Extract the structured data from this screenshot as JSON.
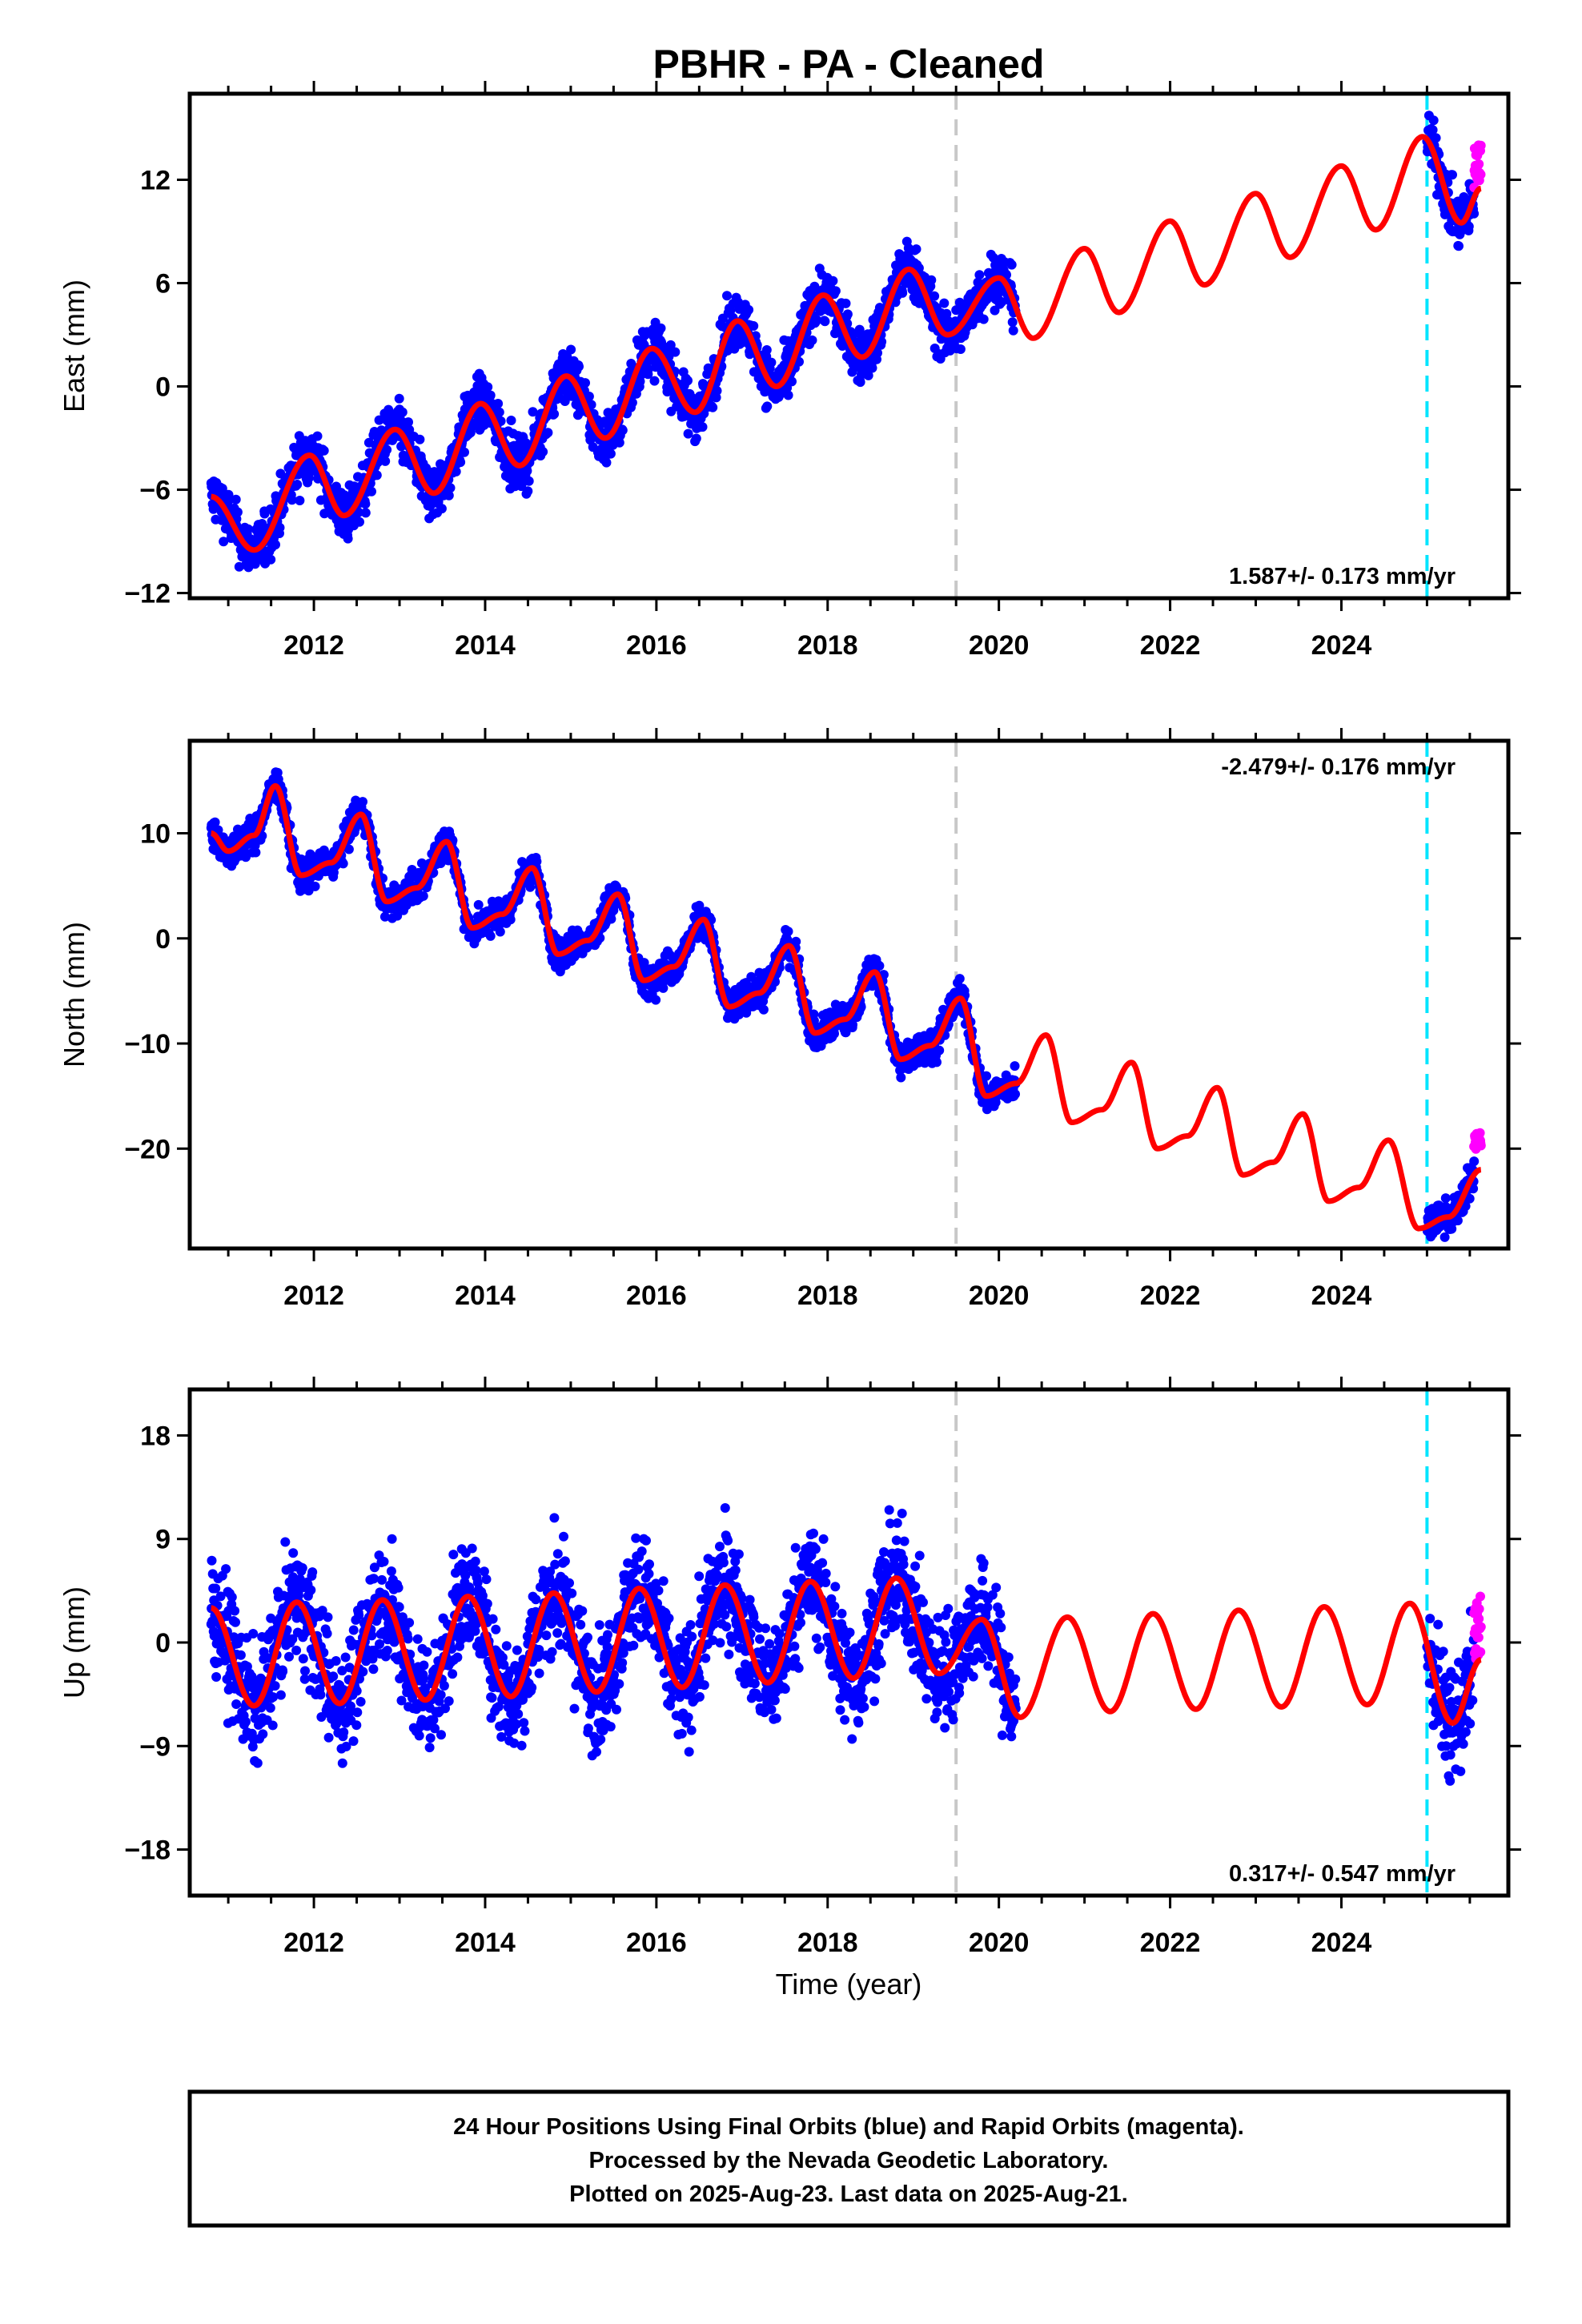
{
  "title": "PBHR  - PA - Cleaned",
  "x_axis_label": "Time (year)",
  "caption": [
    "24 Hour Positions Using Final Orbits (blue) and Rapid Orbits (magenta).",
    "Processed by the Nevada Geodetic Laboratory.",
    "Plotted on 2025-Aug-23. Last data on 2025-Aug-21."
  ],
  "colors": {
    "final_orbits": "#0000ff",
    "rapid_orbits": "#ff00ff",
    "model_fit": "#ff0000",
    "gray_line": "#c8c8c8",
    "cyan_line": "#00e5ff"
  },
  "chart_data": [
    {
      "type": "scatter",
      "component": "East",
      "ylabel": "East (mm)",
      "xlim": [
        2010.55,
        2025.95
      ],
      "ylim": [
        -12.3,
        17.0
      ],
      "xticks": [
        2012,
        2014,
        2016,
        2018,
        2020,
        2022,
        2024
      ],
      "yticks": [
        -12,
        -6,
        0,
        6,
        12
      ],
      "rate_label": "1.587+/- 0.173 mm/yr",
      "rate_position": "bottom-right",
      "gray_dashed_line_year": 2019.5,
      "cyan_dashed_line_year": 2025.0,
      "series": [
        {
          "role": "Final Orbits (blue)",
          "color": "#0000ff",
          "x_range": [
            2010.8,
            2020.2
          ]
        },
        {
          "role": "Final Orbits (blue)",
          "color": "#0000ff",
          "x_range": [
            2025.0,
            2025.55
          ]
        },
        {
          "role": "Rapid Orbits (magenta)",
          "color": "#ff00ff",
          "x_range": [
            2025.55,
            2025.63
          ]
        }
      ],
      "model": {
        "color": "#ff0000",
        "x_range": [
          2010.8,
          2025.63
        ],
        "start_value": -6.4,
        "peak_2025": 14.5
      },
      "fit_points": [
        [
          2010.8,
          -6.4
        ],
        [
          2011.3,
          -9.5
        ],
        [
          2011.95,
          -4.0
        ],
        [
          2012.35,
          -7.5
        ],
        [
          2012.95,
          -2.5
        ],
        [
          2013.4,
          -6.2
        ],
        [
          2013.95,
          -1.0
        ],
        [
          2014.4,
          -4.6
        ],
        [
          2014.95,
          0.6
        ],
        [
          2015.4,
          -3.0
        ],
        [
          2015.95,
          2.2
        ],
        [
          2016.45,
          -1.5
        ],
        [
          2016.95,
          3.8
        ],
        [
          2017.4,
          0.0
        ],
        [
          2017.95,
          5.3
        ],
        [
          2018.4,
          1.7
        ],
        [
          2018.95,
          6.8
        ],
        [
          2019.4,
          3.0
        ],
        [
          2020.0,
          6.3
        ],
        [
          2020.4,
          2.8
        ],
        [
          2021.0,
          8.0
        ],
        [
          2021.4,
          4.3
        ],
        [
          2022.0,
          9.6
        ],
        [
          2022.4,
          5.9
        ],
        [
          2023.0,
          11.2
        ],
        [
          2023.4,
          7.5
        ],
        [
          2024.0,
          12.8
        ],
        [
          2024.4,
          9.1
        ],
        [
          2024.95,
          14.5
        ],
        [
          2025.4,
          9.5
        ],
        [
          2025.63,
          11.5
        ]
      ]
    },
    {
      "type": "scatter",
      "component": "North",
      "ylabel": "North (mm)",
      "xlim": [
        2010.55,
        2025.95
      ],
      "ylim": [
        -29.5,
        18.8
      ],
      "xticks": [
        2012,
        2014,
        2016,
        2018,
        2020,
        2022,
        2024
      ],
      "yticks": [
        -20,
        -10,
        0,
        10
      ],
      "rate_label": "-2.479+/- 0.176 mm/yr",
      "rate_position": "top-right",
      "gray_dashed_line_year": 2019.5,
      "cyan_dashed_line_year": 2025.0,
      "series": [
        {
          "role": "Final Orbits (blue)",
          "color": "#0000ff",
          "x_range": [
            2010.8,
            2020.2
          ]
        },
        {
          "role": "Final Orbits (blue)",
          "color": "#0000ff",
          "x_range": [
            2025.0,
            2025.55
          ]
        },
        {
          "role": "Rapid Orbits (magenta)",
          "color": "#ff00ff",
          "x_range": [
            2025.55,
            2025.63
          ]
        }
      ],
      "model": {
        "color": "#ff0000",
        "x_range": [
          2010.8,
          2025.63
        ],
        "start_value": 10.0,
        "trough_2025": -27.6
      },
      "fit_points": [
        [
          2010.8,
          10.0
        ],
        [
          2011.0,
          8.3
        ],
        [
          2011.3,
          9.8
        ],
        [
          2011.55,
          14.5
        ],
        [
          2011.85,
          6.0
        ],
        [
          2012.2,
          7.2
        ],
        [
          2012.55,
          11.8
        ],
        [
          2012.85,
          3.5
        ],
        [
          2013.2,
          4.8
        ],
        [
          2013.55,
          9.2
        ],
        [
          2013.85,
          1.0
        ],
        [
          2014.2,
          2.3
        ],
        [
          2014.55,
          6.7
        ],
        [
          2014.85,
          -1.5
        ],
        [
          2015.2,
          -0.2
        ],
        [
          2015.55,
          4.2
        ],
        [
          2015.85,
          -4.0
        ],
        [
          2016.2,
          -2.7
        ],
        [
          2016.55,
          1.8
        ],
        [
          2016.85,
          -6.5
        ],
        [
          2017.2,
          -5.2
        ],
        [
          2017.55,
          -0.7
        ],
        [
          2017.85,
          -9.0
        ],
        [
          2018.2,
          -7.7
        ],
        [
          2018.55,
          -3.2
        ],
        [
          2018.85,
          -11.5
        ],
        [
          2019.2,
          -10.2
        ],
        [
          2019.55,
          -5.7
        ],
        [
          2019.85,
          -15.0
        ],
        [
          2020.2,
          -13.8
        ],
        [
          2020.55,
          -9.2
        ],
        [
          2020.85,
          -17.5
        ],
        [
          2021.2,
          -16.3
        ],
        [
          2021.55,
          -11.8
        ],
        [
          2021.85,
          -20.0
        ],
        [
          2022.2,
          -18.8
        ],
        [
          2022.55,
          -14.2
        ],
        [
          2022.85,
          -22.5
        ],
        [
          2023.2,
          -21.3
        ],
        [
          2023.55,
          -16.7
        ],
        [
          2023.85,
          -25.0
        ],
        [
          2024.2,
          -23.7
        ],
        [
          2024.55,
          -19.2
        ],
        [
          2024.9,
          -27.6
        ],
        [
          2025.25,
          -26.5
        ],
        [
          2025.63,
          -22.0
        ]
      ]
    },
    {
      "type": "scatter",
      "component": "Up",
      "ylabel": "Up (mm)",
      "xlim": [
        2010.55,
        2025.95
      ],
      "ylim": [
        -22.0,
        22.0
      ],
      "xticks": [
        2012,
        2014,
        2016,
        2018,
        2020,
        2022,
        2024
      ],
      "yticks": [
        -18,
        -9,
        0,
        9,
        18
      ],
      "rate_label": "0.317+/- 0.547 mm/yr",
      "rate_position": "bottom-right",
      "gray_dashed_line_year": 2019.5,
      "cyan_dashed_line_year": 2025.0,
      "series": [
        {
          "role": "Final Orbits (blue)",
          "color": "#0000ff",
          "x_range": [
            2010.8,
            2020.2
          ]
        },
        {
          "role": "Final Orbits (blue)",
          "color": "#0000ff",
          "x_range": [
            2025.0,
            2025.55
          ]
        },
        {
          "role": "Rapid Orbits (magenta)",
          "color": "#ff00ff",
          "x_range": [
            2025.55,
            2025.63
          ]
        }
      ],
      "model": {
        "color": "#ff0000",
        "x_range": [
          2010.8,
          2025.63
        ],
        "seasonal_amplitude_mm": 4.5
      },
      "fit_points": [
        [
          2010.8,
          3.0
        ],
        [
          2011.3,
          -5.5
        ],
        [
          2011.8,
          3.5
        ],
        [
          2012.3,
          -5.3
        ],
        [
          2012.8,
          3.7
        ],
        [
          2013.3,
          -5.0
        ],
        [
          2013.8,
          4.0
        ],
        [
          2014.3,
          -4.7
        ],
        [
          2014.8,
          4.3
        ],
        [
          2015.3,
          -4.3
        ],
        [
          2015.8,
          4.7
        ],
        [
          2016.3,
          -3.9
        ],
        [
          2016.8,
          5.0
        ],
        [
          2017.3,
          -3.5
        ],
        [
          2017.8,
          5.3
        ],
        [
          2018.3,
          -3.1
        ],
        [
          2018.8,
          5.6
        ],
        [
          2019.3,
          -2.7
        ],
        [
          2019.8,
          2.0
        ],
        [
          2020.25,
          -6.5
        ],
        [
          2020.8,
          2.2
        ],
        [
          2021.3,
          -6.0
        ],
        [
          2021.8,
          2.5
        ],
        [
          2022.3,
          -5.8
        ],
        [
          2022.8,
          2.8
        ],
        [
          2023.3,
          -5.6
        ],
        [
          2023.8,
          3.1
        ],
        [
          2024.3,
          -5.4
        ],
        [
          2024.8,
          3.4
        ],
        [
          2025.3,
          -7.0
        ],
        [
          2025.63,
          -1.5
        ]
      ]
    }
  ]
}
